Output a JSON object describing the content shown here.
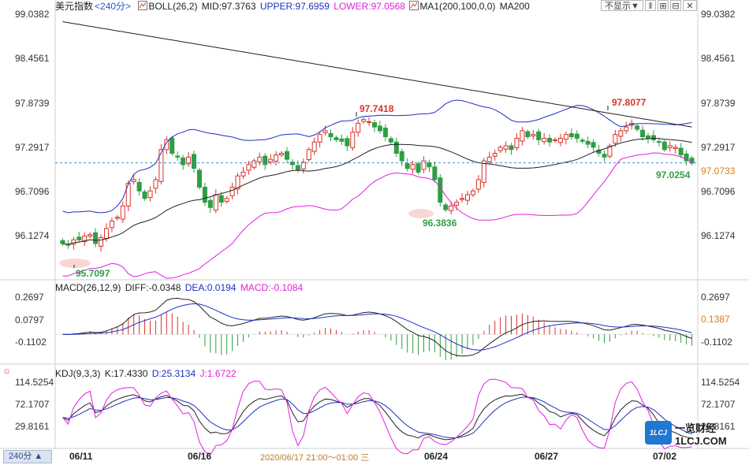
{
  "header": {
    "symbol": "美元指数",
    "period": "<240分>",
    "boll_label": "BOLL(26,2)",
    "mid": "MID:97.3763",
    "upper": "UPPER:97.6959",
    "lower": "LOWER:97.0568",
    "ma_label": "MA1(200,100,0,0)",
    "ma200": "MA200",
    "dropdown": "不显示▼"
  },
  "macd_header": {
    "label": "MACD(26,12,9)",
    "diff": "DIFF:-0.0348",
    "dea": "DEA:0.0194",
    "macd": "MACD:-0.1084"
  },
  "kdj_header": {
    "label": "KDJ(9,3,3)",
    "k": "K:17.4330",
    "d": "D:25.3134",
    "j": "J:1.6722"
  },
  "price_axis": [
    "99.0382",
    "98.4561",
    "97.8739",
    "97.2917",
    "96.7096",
    "96.1274"
  ],
  "current_price": "97.0733",
  "macd_axis": [
    "0.2697",
    "0.0797",
    "-0.1102"
  ],
  "macd_current": "0.1387",
  "kdj_axis": [
    "114.5254",
    "72.1707",
    "29.8161"
  ],
  "x_axis": [
    "06/11",
    "06/16",
    "06/24",
    "06/27",
    "07/02"
  ],
  "crosshair_date": "2020/06/17 21:00～01:00 三",
  "period_button": "240分 ▲",
  "annotations": {
    "high1": "97.7418",
    "high2": "97.8077",
    "low1": "95.7097",
    "low2": "96.3836",
    "last_low": "97.0254"
  },
  "colors": {
    "up": "#d9322b",
    "down": "#2f9e44",
    "upper": "#1e2fc4",
    "lower": "#e21ee0",
    "mid": "#222222",
    "ma200": "#222222"
  },
  "icons": [
    "boll-icon",
    "ma-icon",
    "settings-icon"
  ],
  "watermark": "一览财经 1LCJ.COM",
  "chart_data": {
    "type": "candlestick",
    "series_close": [
      96.0,
      95.98,
      96.05,
      96.05,
      96.1,
      96.12,
      96.0,
      96.08,
      96.2,
      96.3,
      96.35,
      96.5,
      96.8,
      96.85,
      96.7,
      96.6,
      96.7,
      96.85,
      97.25,
      97.38,
      97.2,
      97.15,
      97.05,
      97.15,
      97.0,
      96.75,
      96.55,
      96.48,
      96.65,
      96.55,
      96.6,
      96.75,
      96.9,
      96.95,
      97.05,
      97.1,
      97.15,
      97.05,
      97.12,
      97.18,
      97.2,
      97.12,
      97.05,
      96.98,
      97.08,
      97.25,
      97.35,
      97.45,
      97.5,
      97.42,
      97.38,
      97.36,
      97.3,
      97.48,
      97.6,
      97.65,
      97.62,
      97.55,
      97.5,
      97.42,
      97.35,
      97.2,
      97.1,
      97.0,
      97.05,
      96.95,
      97.1,
      97.02,
      96.85,
      96.55,
      96.45,
      96.5,
      96.55,
      96.6,
      96.65,
      96.7,
      96.85,
      97.1,
      97.15,
      97.2,
      97.28,
      97.3,
      97.25,
      97.4,
      97.5,
      97.42,
      97.45,
      97.38,
      97.4,
      97.35,
      97.38,
      97.4,
      97.45,
      97.42,
      97.4,
      97.36,
      97.32,
      97.28,
      97.2,
      97.15,
      97.3,
      97.45,
      97.5,
      97.55,
      97.6,
      97.52,
      97.42,
      97.4,
      97.38,
      97.35,
      97.25,
      97.3,
      97.28,
      97.18,
      97.1,
      97.07
    ],
    "ylim": [
      95.55,
      99.05
    ],
    "macd_ylim": [
      -0.22,
      0.34
    ],
    "kdj_ylim": [
      -5,
      125
    ]
  }
}
